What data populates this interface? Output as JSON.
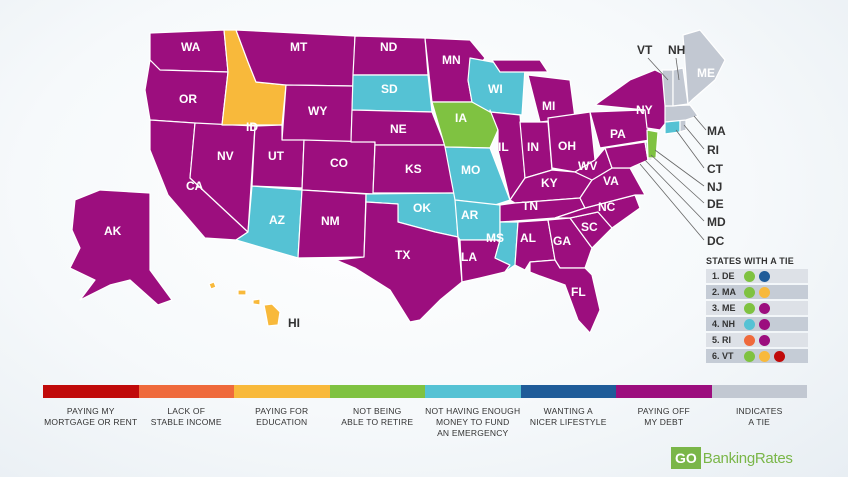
{
  "colors": {
    "mortgage": "#c00a0a",
    "income": "#ef6a3c",
    "education": "#f8b93b",
    "retire": "#7fc241",
    "emergency": "#55c2d4",
    "lifestyle": "#1f5c99",
    "debt": "#9c0e7e",
    "tie": "#c2c8d2"
  },
  "states": {
    "WA": "WA",
    "OR": "OR",
    "CA": "CA",
    "NV": "NV",
    "ID": "ID",
    "MT": "MT",
    "WY": "WY",
    "UT": "UT",
    "AZ": "AZ",
    "CO": "CO",
    "NM": "NM",
    "ND": "ND",
    "SD": "SD",
    "NE": "NE",
    "KS": "KS",
    "OK": "OK",
    "TX": "TX",
    "MN": "MN",
    "IA": "IA",
    "MO": "MO",
    "AR": "AR",
    "LA": "LA",
    "WI": "WI",
    "IL": "IL",
    "MI": "MI",
    "IN": "IN",
    "OH": "OH",
    "KY": "KY",
    "TN": "TN",
    "MS": "MS",
    "AL": "AL",
    "GA": "GA",
    "FL": "FL",
    "SC": "SC",
    "NC": "NC",
    "VA": "VA",
    "WV": "WV",
    "PA": "PA",
    "NY": "NY",
    "ME": "ME",
    "AK": "AK",
    "HI": "HI"
  },
  "callouts": {
    "VT": "VT",
    "NH": "NH",
    "MA": "MA",
    "RI": "RI",
    "CT": "CT",
    "NJ": "NJ",
    "DE": "DE",
    "MD": "MD",
    "DC": "DC"
  },
  "ties": {
    "title": "STATES WITH A TIE",
    "rows": [
      {
        "label": "1. DE",
        "colors": [
          "#7fc241",
          "#1f5c99"
        ]
      },
      {
        "label": "2. MA",
        "colors": [
          "#7fc241",
          "#f8b93b"
        ]
      },
      {
        "label": "3. ME",
        "colors": [
          "#7fc241",
          "#9c0e7e"
        ]
      },
      {
        "label": "4. NH",
        "colors": [
          "#55c2d4",
          "#9c0e7e"
        ]
      },
      {
        "label": "5. RI",
        "colors": [
          "#ef6a3c",
          "#9c0e7e"
        ]
      },
      {
        "label": "6. VT",
        "colors": [
          "#7fc241",
          "#f8b93b",
          "#c00a0a"
        ]
      }
    ]
  },
  "legend": [
    {
      "color": "#c00a0a",
      "line1": "PAYING MY",
      "line2": "MORTGAGE OR RENT",
      "line3": ""
    },
    {
      "color": "#ef6a3c",
      "line1": "LACK OF",
      "line2": "STABLE INCOME",
      "line3": ""
    },
    {
      "color": "#f8b93b",
      "line1": "PAYING FOR",
      "line2": "EDUCATION",
      "line3": ""
    },
    {
      "color": "#7fc241",
      "line1": "NOT BEING",
      "line2": "ABLE TO RETIRE",
      "line3": ""
    },
    {
      "color": "#55c2d4",
      "line1": "NOT HAVING ENOUGH",
      "line2": "MONEY TO FUND",
      "line3": "AN EMERGENCY"
    },
    {
      "color": "#1f5c99",
      "line1": "WANTING A",
      "line2": "NICER LIFESTYLE",
      "line3": ""
    },
    {
      "color": "#9c0e7e",
      "line1": "PAYING OFF",
      "line2": "MY DEBT",
      "line3": ""
    },
    {
      "color": "#c2c8d2",
      "line1": "INDICATES",
      "line2": "A TIE",
      "line3": ""
    }
  ],
  "logo": {
    "go": "GO",
    "rest": "BankingRates"
  }
}
